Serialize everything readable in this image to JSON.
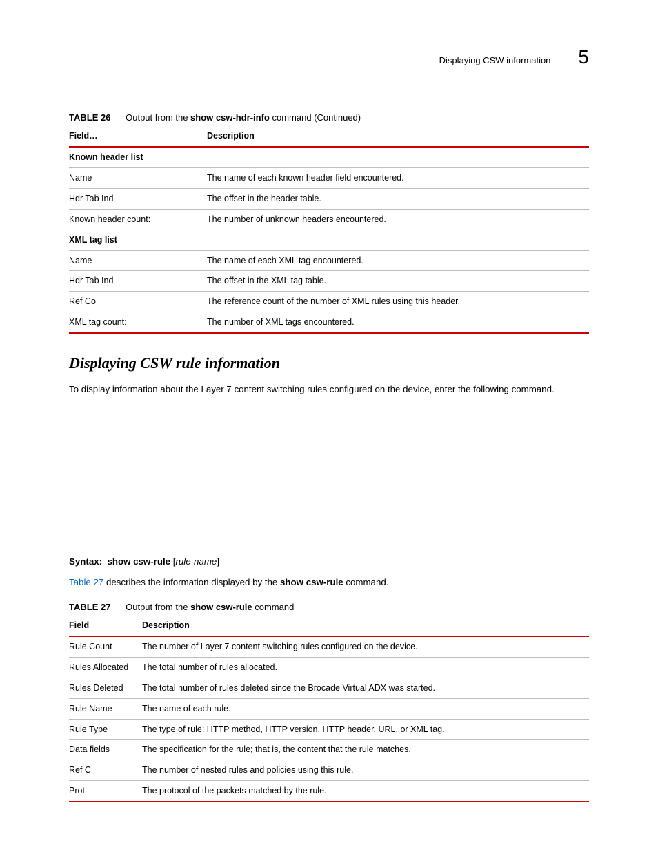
{
  "header": {
    "section_title": "Displaying CSW information",
    "chapter_number": "5"
  },
  "table26": {
    "caption_label": "TABLE 26",
    "caption_pre": "Output from the ",
    "caption_cmd": "show csw-hdr-info",
    "caption_post": " command (Continued)",
    "columns": [
      "Field…",
      "Description"
    ],
    "rows": [
      {
        "field": "Known header list",
        "desc": "",
        "bold": true
      },
      {
        "field": "Name",
        "desc": "The name of each known header field encountered."
      },
      {
        "field": "Hdr Tab Ind",
        "desc": "The offset in the header table."
      },
      {
        "field": "Known header count:",
        "desc": "The number of unknown headers encountered."
      },
      {
        "field": "XML tag list",
        "desc": "",
        "bold": true
      },
      {
        "field": "Name",
        "desc": "The name of each XML tag encountered."
      },
      {
        "field": "Hdr Tab Ind",
        "desc": "The offset in the XML tag table."
      },
      {
        "field": "Ref Co",
        "desc": "The reference count of the number of XML rules using this header."
      },
      {
        "field": "XML tag count:",
        "desc": "The number of XML tags encountered."
      }
    ]
  },
  "section": {
    "heading": "Displaying CSW rule information",
    "intro": "To display information about the Layer 7 content switching rules configured on the device, enter the following command."
  },
  "syntax": {
    "label": "Syntax:",
    "command": "show csw-rule",
    "param_open": " [",
    "param": "rule-name",
    "param_close": "]"
  },
  "desc": {
    "link": "Table 27",
    "middle": " describes the information displayed by the ",
    "cmd": "show csw-rule",
    "tail": " command."
  },
  "table27": {
    "caption_label": "TABLE 27",
    "caption_pre": "Output from the ",
    "caption_cmd": "show csw-rule",
    "caption_post": " command",
    "columns": [
      "Field",
      "Description"
    ],
    "rows": [
      {
        "field": "Rule Count",
        "desc": "The number of Layer 7 content switching rules configured on the device."
      },
      {
        "field": "Rules Allocated",
        "desc": "The total number of rules allocated."
      },
      {
        "field": "Rules Deleted",
        "desc": "The total number of rules deleted since the Brocade Virtual ADX was started."
      },
      {
        "field": "Rule Name",
        "desc": "The name of each rule."
      },
      {
        "field": "Rule Type",
        "desc": "The type of rule: HTTP method, HTTP version, HTTP header, URL, or XML tag."
      },
      {
        "field": "Data fields",
        "desc": "The specification for the rule; that is, the content that the rule matches."
      },
      {
        "field": "Ref C",
        "desc": "The number of nested rules and policies using this rule."
      },
      {
        "field": "Prot",
        "desc": "The protocol of the packets matched by the rule."
      }
    ]
  }
}
